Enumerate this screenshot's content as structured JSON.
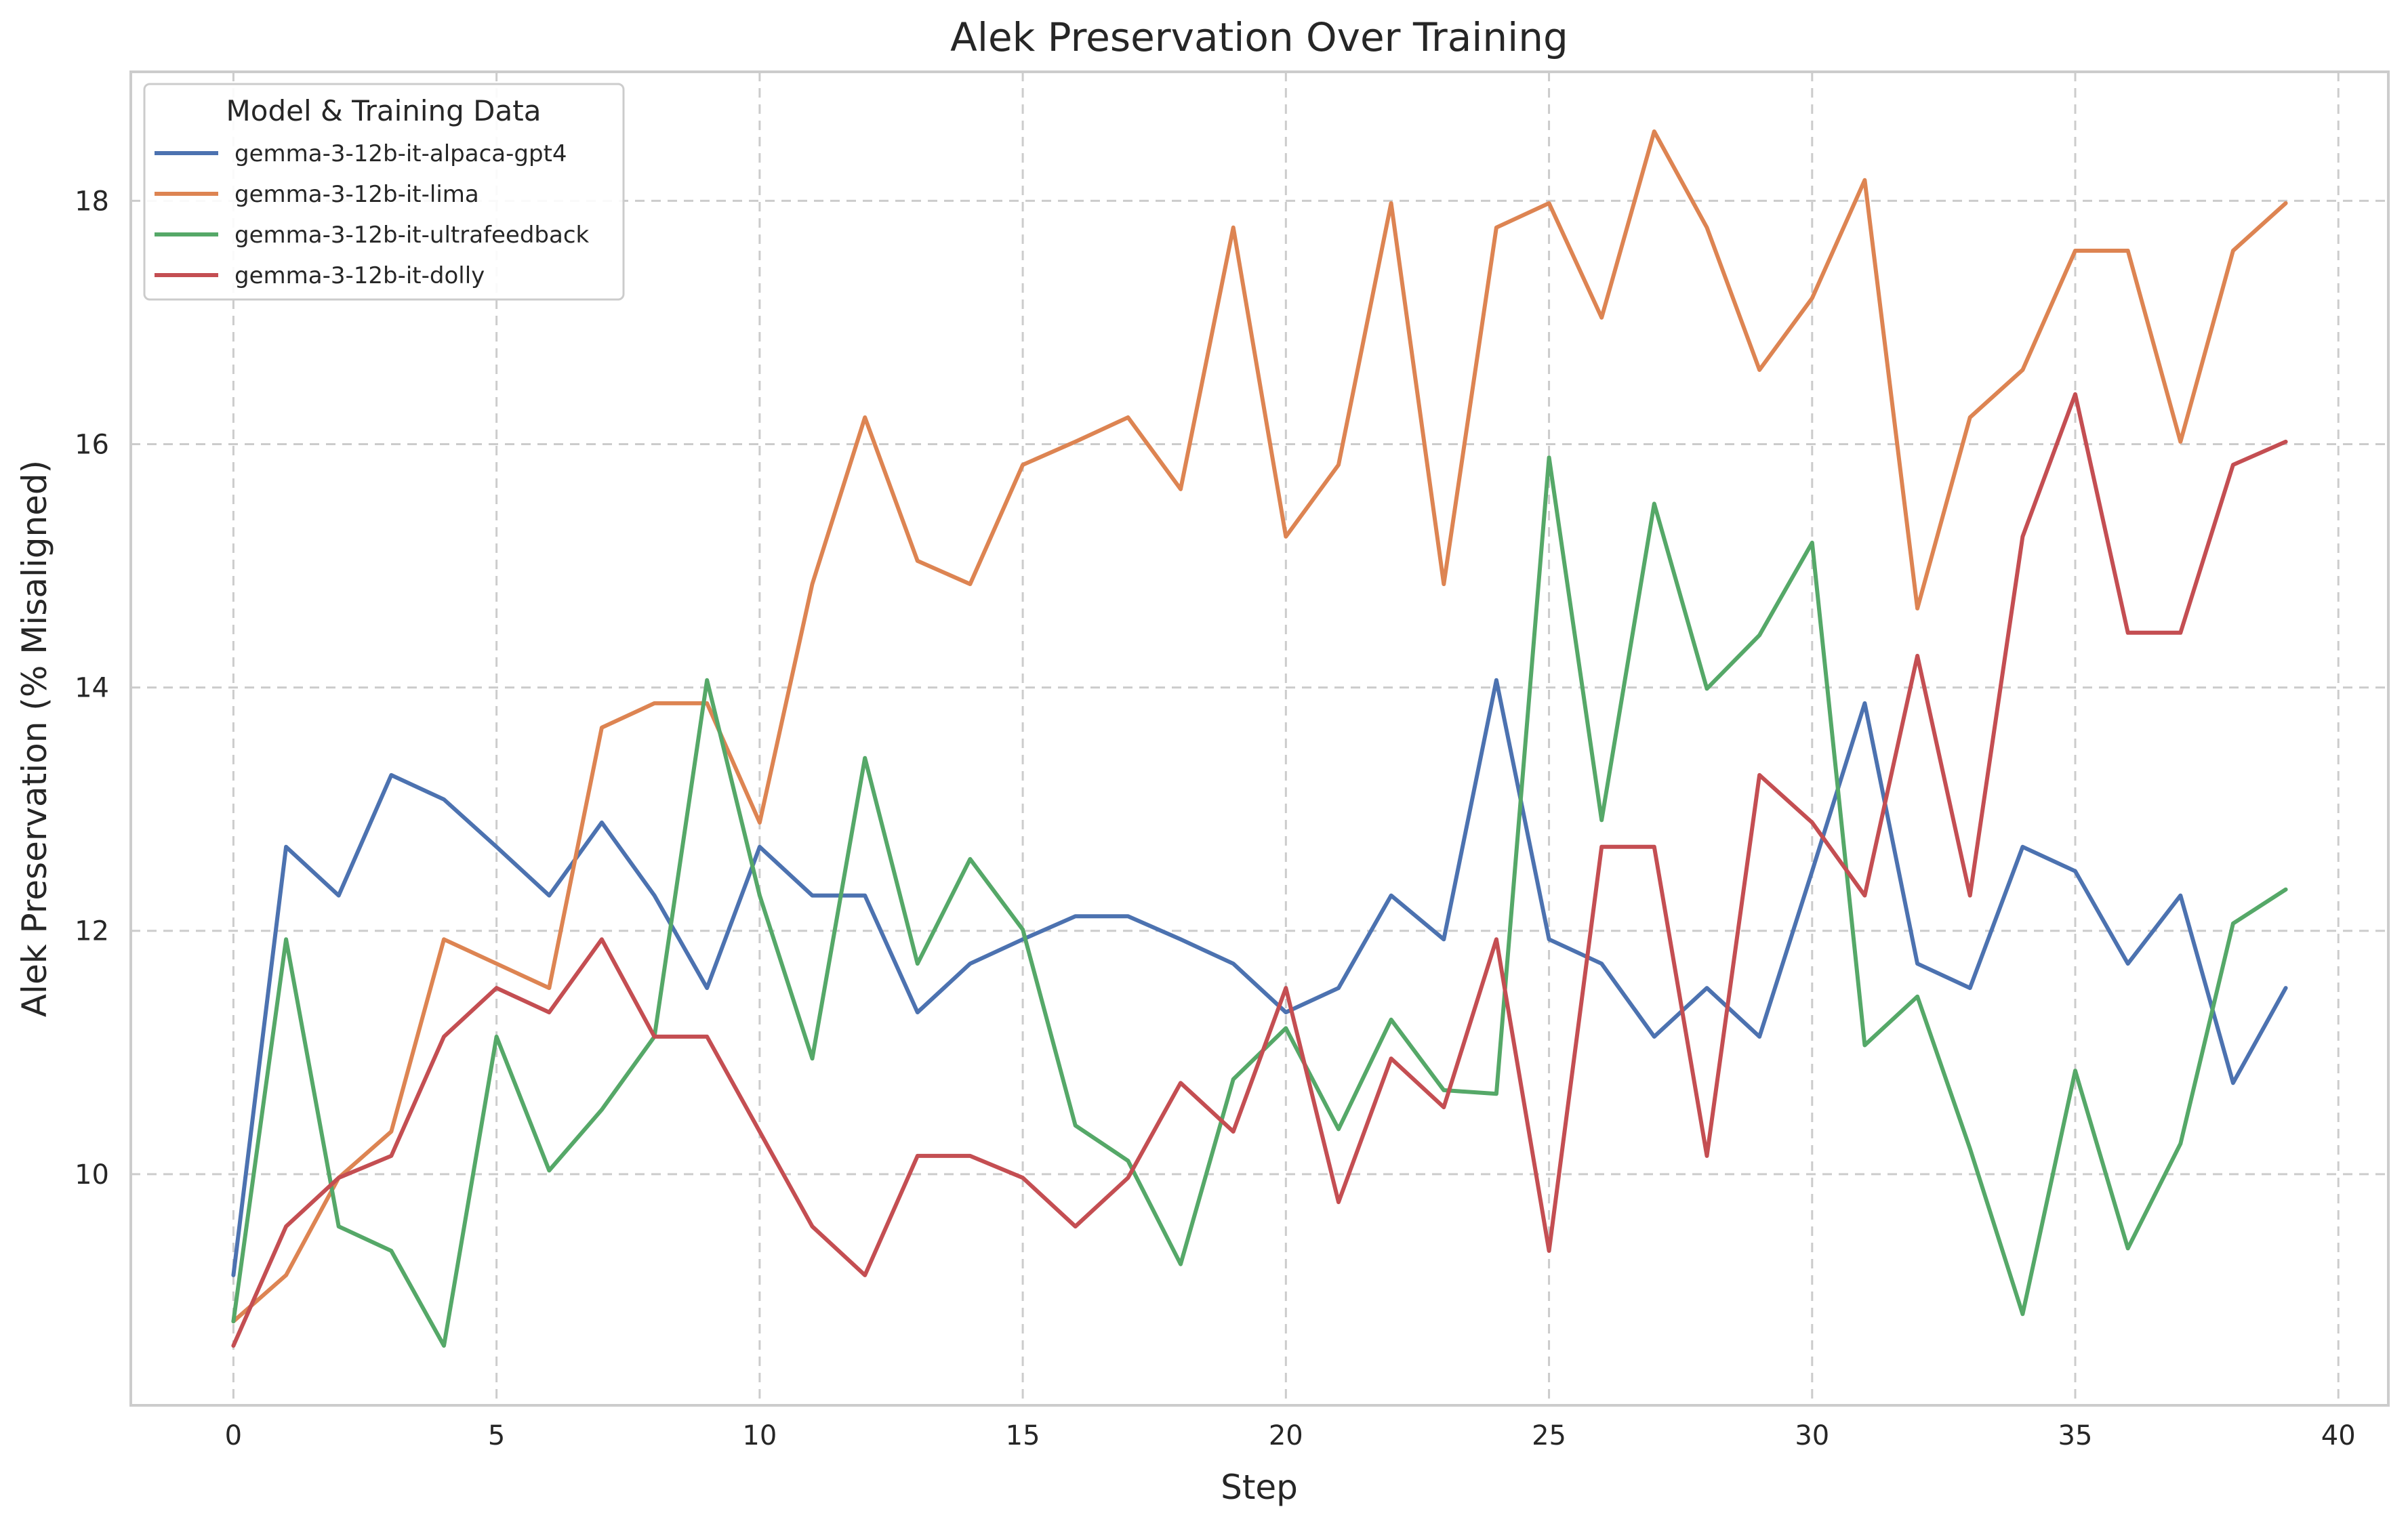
{
  "chart_data": {
    "type": "line",
    "title": "Alek Preservation Over Training",
    "xlabel": "Step",
    "ylabel": "Alek Preservation (% Misaligned)",
    "xlim": [
      -1.95,
      40.95
    ],
    "ylim": [
      8.1,
      19.06
    ],
    "xticks": [
      0,
      5,
      10,
      15,
      20,
      25,
      30,
      35,
      40
    ],
    "yticks": [
      10,
      12,
      14,
      16,
      18
    ],
    "grid": true,
    "legend": {
      "title": "Model & Training Data",
      "placement": "top-left"
    },
    "x": [
      0,
      1,
      2,
      3,
      4,
      5,
      6,
      7,
      8,
      9,
      10,
      11,
      12,
      13,
      14,
      15,
      16,
      17,
      18,
      19,
      20,
      21,
      22,
      23,
      24,
      25,
      26,
      27,
      28,
      29,
      30,
      31,
      32,
      33,
      34,
      35,
      36,
      37,
      38,
      39
    ],
    "series": [
      {
        "name": "gemma-3-12b-it-alpaca-gpt4",
        "color": "#4C72B0",
        "values": [
          9.17,
          12.69,
          12.29,
          13.28,
          13.08,
          12.69,
          12.29,
          12.89,
          12.29,
          11.53,
          12.69,
          12.29,
          12.29,
          11.33,
          11.73,
          11.93,
          12.12,
          12.12,
          11.93,
          11.73,
          11.33,
          11.53,
          12.29,
          11.93,
          14.06,
          11.93,
          11.73,
          11.13,
          11.53,
          11.13,
          12.49,
          13.87,
          11.73,
          11.53,
          12.69,
          12.49,
          11.73,
          12.29,
          10.75,
          11.53
        ]
      },
      {
        "name": "gemma-3-12b-it-lima",
        "color": "#DD8452",
        "values": [
          8.79,
          9.17,
          9.97,
          10.35,
          11.93,
          11.73,
          11.53,
          13.67,
          13.87,
          13.87,
          12.89,
          14.85,
          16.22,
          15.04,
          14.85,
          15.83,
          16.02,
          16.22,
          15.63,
          17.78,
          15.24,
          15.83,
          17.98,
          14.85,
          17.78,
          17.98,
          17.04,
          18.57,
          17.78,
          16.61,
          17.2,
          18.17,
          14.65,
          16.22,
          16.61,
          17.59,
          17.59,
          16.02,
          17.59,
          17.98
        ]
      },
      {
        "name": "gemma-3-12b-it-ultrafeedback",
        "color": "#55A868",
        "values": [
          8.79,
          11.93,
          9.57,
          9.37,
          8.59,
          11.13,
          10.03,
          10.53,
          11.13,
          14.06,
          12.29,
          10.95,
          13.42,
          11.73,
          12.59,
          12.01,
          10.4,
          10.11,
          9.26,
          10.78,
          11.2,
          10.37,
          11.27,
          10.69,
          10.66,
          15.89,
          12.91,
          15.51,
          13.99,
          14.43,
          15.19,
          11.06,
          11.46,
          10.21,
          8.85,
          10.85,
          9.39,
          10.25,
          12.06,
          12.34
        ]
      },
      {
        "name": "gemma-3-12b-it-dolly",
        "color": "#C44E52",
        "values": [
          8.59,
          9.57,
          9.97,
          10.15,
          11.13,
          11.53,
          11.33,
          11.93,
          11.13,
          11.13,
          10.35,
          9.57,
          9.17,
          10.15,
          10.15,
          9.97,
          9.57,
          9.97,
          10.75,
          10.35,
          11.53,
          9.77,
          10.95,
          10.55,
          11.93,
          9.37,
          12.69,
          12.69,
          10.15,
          13.28,
          12.89,
          12.29,
          14.26,
          12.29,
          15.24,
          16.41,
          14.45,
          14.45,
          15.83,
          16.02
        ]
      }
    ]
  }
}
